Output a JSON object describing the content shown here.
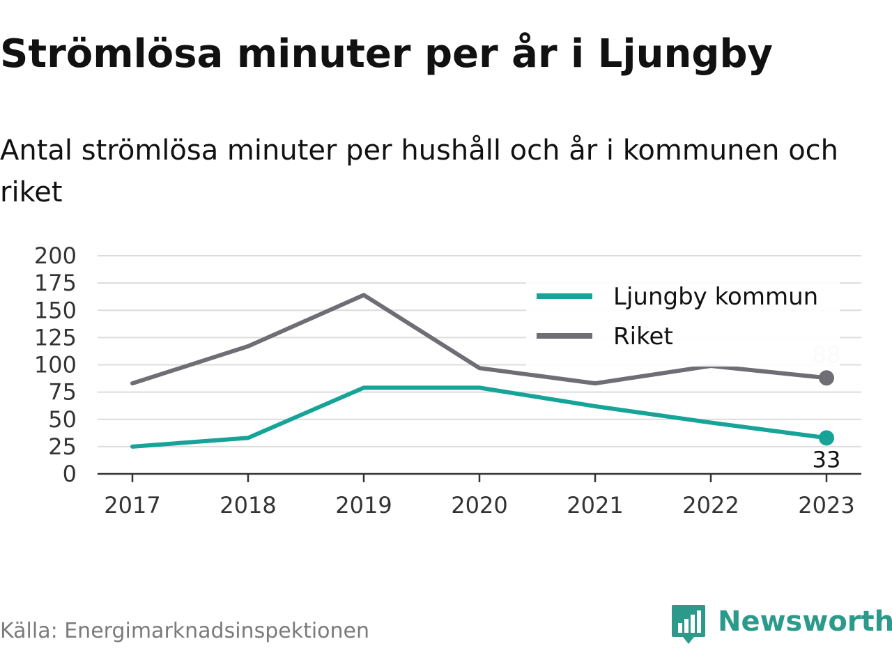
{
  "header": {
    "title": "Strömlösa minuter per år i Ljungby",
    "subtitle": "Antal strömlösa minuter per hushåll och år i kommunen och riket"
  },
  "footer": {
    "source": "Källa: Energimarknadsinspektionen",
    "brand_name": "Newsworthy",
    "brand_icon": "newsworthy-logo-icon",
    "brand_color": "#2c9a8a"
  },
  "chart_data": {
    "type": "line",
    "title": "Strömlösa minuter per år i Ljungby",
    "subtitle": "Antal strömlösa minuter per hushåll och år i kommunen och riket",
    "xlabel": "",
    "ylabel": "",
    "x": [
      "2017",
      "2018",
      "2019",
      "2020",
      "2021",
      "2022",
      "2023"
    ],
    "ylim": [
      0,
      200
    ],
    "yticks": [
      0,
      25,
      50,
      75,
      100,
      125,
      150,
      175,
      200
    ],
    "grid": true,
    "legend_position": "top-right",
    "series": [
      {
        "name": "Ljungby kommun",
        "color": "#15a497",
        "values": [
          25,
          33,
          79,
          79,
          62,
          47,
          33
        ],
        "end_label": "33"
      },
      {
        "name": "Riket",
        "color": "#6f6e75",
        "values": [
          83,
          117,
          164,
          97,
          83,
          99,
          88
        ],
        "end_label": "88"
      }
    ]
  }
}
